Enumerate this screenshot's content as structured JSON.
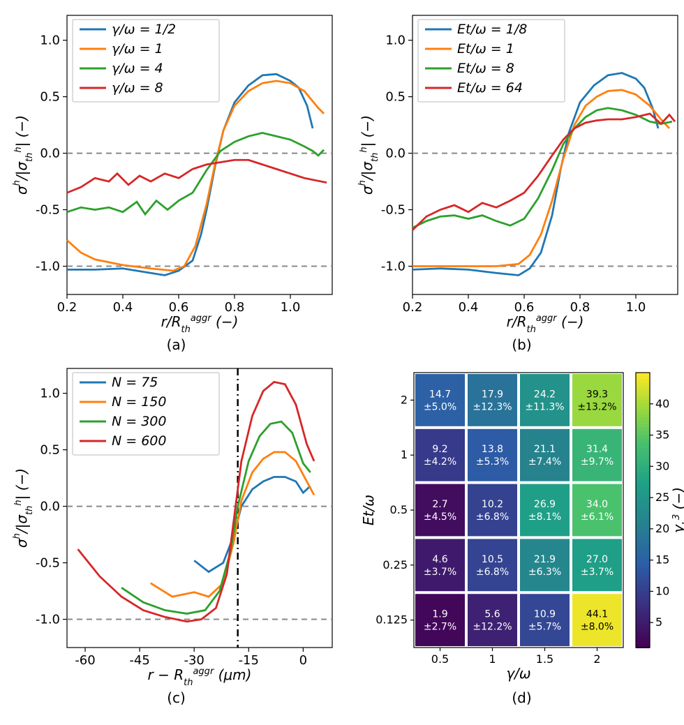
{
  "colors": {
    "c0": "#1f77b4",
    "c1": "#ff7f0e",
    "c2": "#2ca02c",
    "c3": "#d62728",
    "dash": "#888888",
    "black": "#000000"
  },
  "panel_a": {
    "xlabel_html": "r / R_th^aggr (−)",
    "ylabel_html": "σ^h / |σ_th^h| (−)",
    "xlim": [
      0.2,
      1.15
    ],
    "ylim": [
      -1.25,
      1.22
    ],
    "xticks": [
      0.2,
      0.4,
      0.6,
      0.8,
      1.0
    ],
    "yticks": [
      -1.0,
      -0.5,
      0.0,
      0.5,
      1.0
    ],
    "hlines": [
      0.0,
      -1.0
    ],
    "legend": [
      "γ/ω = 1/2",
      "γ/ω =   1",
      "γ/ω =   4",
      "γ/ω =   8"
    ],
    "series": [
      {
        "color": "#1f77b4",
        "pts": [
          [
            0.2,
            -1.03
          ],
          [
            0.3,
            -1.03
          ],
          [
            0.4,
            -1.02
          ],
          [
            0.5,
            -1.06
          ],
          [
            0.55,
            -1.08
          ],
          [
            0.6,
            -1.04
          ],
          [
            0.65,
            -0.95
          ],
          [
            0.68,
            -0.72
          ],
          [
            0.7,
            -0.5
          ],
          [
            0.73,
            -0.12
          ],
          [
            0.76,
            0.2
          ],
          [
            0.8,
            0.45
          ],
          [
            0.85,
            0.6
          ],
          [
            0.9,
            0.69
          ],
          [
            0.95,
            0.7
          ],
          [
            1.0,
            0.64
          ],
          [
            1.03,
            0.58
          ],
          [
            1.06,
            0.42
          ],
          [
            1.08,
            0.22
          ]
        ]
      },
      {
        "color": "#ff7f0e",
        "pts": [
          [
            0.2,
            -0.77
          ],
          [
            0.25,
            -0.88
          ],
          [
            0.3,
            -0.94
          ],
          [
            0.4,
            -0.99
          ],
          [
            0.5,
            -1.02
          ],
          [
            0.58,
            -1.04
          ],
          [
            0.62,
            -1.0
          ],
          [
            0.66,
            -0.82
          ],
          [
            0.7,
            -0.45
          ],
          [
            0.73,
            -0.1
          ],
          [
            0.76,
            0.2
          ],
          [
            0.8,
            0.42
          ],
          [
            0.85,
            0.55
          ],
          [
            0.9,
            0.62
          ],
          [
            0.95,
            0.64
          ],
          [
            1.0,
            0.62
          ],
          [
            1.05,
            0.55
          ],
          [
            1.1,
            0.4
          ],
          [
            1.12,
            0.35
          ]
        ]
      },
      {
        "color": "#2ca02c",
        "pts": [
          [
            0.2,
            -0.52
          ],
          [
            0.25,
            -0.48
          ],
          [
            0.3,
            -0.5
          ],
          [
            0.35,
            -0.48
          ],
          [
            0.4,
            -0.52
          ],
          [
            0.45,
            -0.43
          ],
          [
            0.48,
            -0.54
          ],
          [
            0.52,
            -0.42
          ],
          [
            0.56,
            -0.5
          ],
          [
            0.6,
            -0.42
          ],
          [
            0.65,
            -0.35
          ],
          [
            0.7,
            -0.15
          ],
          [
            0.75,
            0.02
          ],
          [
            0.8,
            0.1
          ],
          [
            0.85,
            0.15
          ],
          [
            0.9,
            0.18
          ],
          [
            0.95,
            0.15
          ],
          [
            1.0,
            0.12
          ],
          [
            1.05,
            0.06
          ],
          [
            1.08,
            0.02
          ],
          [
            1.1,
            -0.02
          ],
          [
            1.12,
            0.03
          ]
        ]
      },
      {
        "color": "#d62728",
        "pts": [
          [
            0.2,
            -0.35
          ],
          [
            0.25,
            -0.3
          ],
          [
            0.3,
            -0.22
          ],
          [
            0.35,
            -0.25
          ],
          [
            0.38,
            -0.18
          ],
          [
            0.42,
            -0.28
          ],
          [
            0.46,
            -0.2
          ],
          [
            0.5,
            -0.25
          ],
          [
            0.55,
            -0.18
          ],
          [
            0.6,
            -0.22
          ],
          [
            0.65,
            -0.14
          ],
          [
            0.7,
            -0.1
          ],
          [
            0.75,
            -0.08
          ],
          [
            0.8,
            -0.06
          ],
          [
            0.85,
            -0.06
          ],
          [
            0.9,
            -0.1
          ],
          [
            0.95,
            -0.14
          ],
          [
            1.0,
            -0.18
          ],
          [
            1.05,
            -0.22
          ],
          [
            1.09,
            -0.24
          ],
          [
            1.13,
            -0.26
          ]
        ]
      }
    ]
  },
  "panel_b": {
    "xlabel_html": "r / R_th^aggr (−)",
    "ylabel_html": "σ^h / |σ_th^h| (−)",
    "xlim": [
      0.2,
      1.15
    ],
    "ylim": [
      -1.25,
      1.22
    ],
    "xticks": [
      0.2,
      0.4,
      0.6,
      0.8,
      1.0
    ],
    "yticks": [
      -1.0,
      -0.5,
      0.0,
      0.5,
      1.0
    ],
    "hlines": [
      0.0,
      -1.0
    ],
    "legend": [
      "Et/ω = 1/8",
      "Et/ω =   1",
      "Et/ω =   8",
      "Et/ω =  64"
    ],
    "series": [
      {
        "color": "#1f77b4",
        "pts": [
          [
            0.2,
            -1.03
          ],
          [
            0.3,
            -1.02
          ],
          [
            0.4,
            -1.03
          ],
          [
            0.5,
            -1.06
          ],
          [
            0.58,
            -1.08
          ],
          [
            0.62,
            -1.02
          ],
          [
            0.66,
            -0.88
          ],
          [
            0.7,
            -0.55
          ],
          [
            0.73,
            -0.15
          ],
          [
            0.76,
            0.18
          ],
          [
            0.8,
            0.45
          ],
          [
            0.85,
            0.6
          ],
          [
            0.9,
            0.69
          ],
          [
            0.95,
            0.71
          ],
          [
            1.0,
            0.66
          ],
          [
            1.03,
            0.58
          ],
          [
            1.06,
            0.4
          ],
          [
            1.08,
            0.22
          ]
        ]
      },
      {
        "color": "#ff7f0e",
        "pts": [
          [
            0.2,
            -1.0
          ],
          [
            0.3,
            -1.0
          ],
          [
            0.4,
            -1.0
          ],
          [
            0.5,
            -1.0
          ],
          [
            0.58,
            -0.98
          ],
          [
            0.62,
            -0.9
          ],
          [
            0.66,
            -0.72
          ],
          [
            0.7,
            -0.42
          ],
          [
            0.74,
            -0.05
          ],
          [
            0.78,
            0.25
          ],
          [
            0.82,
            0.42
          ],
          [
            0.86,
            0.5
          ],
          [
            0.9,
            0.55
          ],
          [
            0.95,
            0.56
          ],
          [
            1.0,
            0.52
          ],
          [
            1.05,
            0.42
          ],
          [
            1.09,
            0.3
          ],
          [
            1.12,
            0.22
          ]
        ]
      },
      {
        "color": "#2ca02c",
        "pts": [
          [
            0.2,
            -0.66
          ],
          [
            0.25,
            -0.6
          ],
          [
            0.3,
            -0.56
          ],
          [
            0.35,
            -0.55
          ],
          [
            0.4,
            -0.58
          ],
          [
            0.45,
            -0.55
          ],
          [
            0.5,
            -0.6
          ],
          [
            0.55,
            -0.64
          ],
          [
            0.6,
            -0.58
          ],
          [
            0.65,
            -0.4
          ],
          [
            0.7,
            -0.15
          ],
          [
            0.74,
            0.08
          ],
          [
            0.78,
            0.22
          ],
          [
            0.82,
            0.32
          ],
          [
            0.86,
            0.38
          ],
          [
            0.9,
            0.4
          ],
          [
            0.95,
            0.38
          ],
          [
            1.0,
            0.34
          ],
          [
            1.05,
            0.28
          ],
          [
            1.09,
            0.26
          ],
          [
            1.13,
            0.28
          ]
        ]
      },
      {
        "color": "#d62728",
        "pts": [
          [
            0.2,
            -0.68
          ],
          [
            0.25,
            -0.56
          ],
          [
            0.3,
            -0.5
          ],
          [
            0.35,
            -0.46
          ],
          [
            0.4,
            -0.52
          ],
          [
            0.45,
            -0.44
          ],
          [
            0.5,
            -0.48
          ],
          [
            0.55,
            -0.42
          ],
          [
            0.6,
            -0.35
          ],
          [
            0.65,
            -0.2
          ],
          [
            0.7,
            -0.02
          ],
          [
            0.74,
            0.12
          ],
          [
            0.78,
            0.22
          ],
          [
            0.82,
            0.27
          ],
          [
            0.86,
            0.29
          ],
          [
            0.9,
            0.3
          ],
          [
            0.95,
            0.3
          ],
          [
            1.0,
            0.32
          ],
          [
            1.05,
            0.35
          ],
          [
            1.09,
            0.26
          ],
          [
            1.12,
            0.34
          ],
          [
            1.14,
            0.28
          ]
        ]
      }
    ]
  },
  "panel_c": {
    "xlabel_html": "r − R_th^aggr (μm)",
    "ylabel_html": "σ^h / |σ_th^h| (−)",
    "xlim": [
      -65,
      8
    ],
    "ylim": [
      -1.25,
      1.22
    ],
    "xticks": [
      -60,
      -45,
      -30,
      -15,
      0
    ],
    "yticks": [
      -1.0,
      -0.5,
      0.0,
      0.5,
      1.0
    ],
    "hlines": [
      0.0,
      -1.0
    ],
    "vline_x": -18,
    "legend": [
      "N =  75",
      "N = 150",
      "N = 300",
      "N = 600"
    ],
    "series": [
      {
        "color": "#1f77b4",
        "pts": [
          [
            -30,
            -0.48
          ],
          [
            -26,
            -0.58
          ],
          [
            -22,
            -0.5
          ],
          [
            -19,
            -0.25
          ],
          [
            -17,
            0.0
          ],
          [
            -14,
            0.15
          ],
          [
            -11,
            0.22
          ],
          [
            -8,
            0.26
          ],
          [
            -5,
            0.26
          ],
          [
            -2,
            0.22
          ],
          [
            0,
            0.12
          ],
          [
            2,
            0.18
          ]
        ]
      },
      {
        "color": "#ff7f0e",
        "pts": [
          [
            -42,
            -0.68
          ],
          [
            -36,
            -0.8
          ],
          [
            -30,
            -0.76
          ],
          [
            -26,
            -0.8
          ],
          [
            -22,
            -0.68
          ],
          [
            -19,
            -0.3
          ],
          [
            -17,
            0.05
          ],
          [
            -14,
            0.3
          ],
          [
            -11,
            0.42
          ],
          [
            -8,
            0.48
          ],
          [
            -5,
            0.48
          ],
          [
            -2,
            0.4
          ],
          [
            1,
            0.22
          ],
          [
            3,
            0.1
          ]
        ]
      },
      {
        "color": "#2ca02c",
        "pts": [
          [
            -50,
            -0.72
          ],
          [
            -44,
            -0.85
          ],
          [
            -38,
            -0.92
          ],
          [
            -32,
            -0.95
          ],
          [
            -27,
            -0.92
          ],
          [
            -23,
            -0.75
          ],
          [
            -20,
            -0.4
          ],
          [
            -18,
            0.0
          ],
          [
            -15,
            0.4
          ],
          [
            -12,
            0.62
          ],
          [
            -9,
            0.73
          ],
          [
            -6,
            0.75
          ],
          [
            -3,
            0.65
          ],
          [
            0,
            0.38
          ],
          [
            2,
            0.3
          ]
        ]
      },
      {
        "color": "#d62728",
        "pts": [
          [
            -62,
            -0.38
          ],
          [
            -56,
            -0.62
          ],
          [
            -50,
            -0.8
          ],
          [
            -44,
            -0.92
          ],
          [
            -38,
            -0.98
          ],
          [
            -32,
            -1.02
          ],
          [
            -28,
            -1.0
          ],
          [
            -24,
            -0.9
          ],
          [
            -21,
            -0.6
          ],
          [
            -19,
            -0.1
          ],
          [
            -17,
            0.4
          ],
          [
            -14,
            0.8
          ],
          [
            -11,
            1.02
          ],
          [
            -8,
            1.1
          ],
          [
            -5,
            1.08
          ],
          [
            -2,
            0.9
          ],
          [
            1,
            0.55
          ],
          [
            3,
            0.4
          ]
        ]
      }
    ]
  },
  "panel_d": {
    "xlabel": "γ/ω",
    "ylabel": "Et/ω",
    "cbar_label_html": "γ_L³ (−)",
    "xticks": [
      "0.5",
      "1",
      "1.5",
      "2"
    ],
    "yticks": [
      "0.125",
      "0.25",
      "0.5",
      "1",
      "2"
    ],
    "cbar_ticks": [
      5,
      10,
      15,
      20,
      25,
      30,
      35,
      40
    ],
    "cbar_range": [
      1,
      45
    ],
    "rows": [
      [
        {
          "v": "14.7",
          "e": "±5.0%"
        },
        {
          "v": "17.9",
          "e": "±12.3%"
        },
        {
          "v": "24.2",
          "e": "±11.3%"
        },
        {
          "v": "39.3",
          "e": "±13.2%"
        }
      ],
      [
        {
          "v": "9.2",
          "e": "±4.2%"
        },
        {
          "v": "13.8",
          "e": "±5.3%"
        },
        {
          "v": "21.1",
          "e": "±7.4%"
        },
        {
          "v": "31.4",
          "e": "±9.7%"
        }
      ],
      [
        {
          "v": "2.7",
          "e": "±4.5%"
        },
        {
          "v": "10.2",
          "e": "±6.8%"
        },
        {
          "v": "26.9",
          "e": "±8.1%"
        },
        {
          "v": "34.0",
          "e": "±6.1%"
        }
      ],
      [
        {
          "v": "4.6",
          "e": "±3.7%"
        },
        {
          "v": "10.5",
          "e": "±6.8%"
        },
        {
          "v": "21.9",
          "e": "±6.3%"
        },
        {
          "v": "27.0",
          "e": "±3.7%"
        }
      ],
      [
        {
          "v": "1.9",
          "e": "±2.7%"
        },
        {
          "v": "5.6",
          "e": "±12.2%"
        },
        {
          "v": "10.9",
          "e": "±5.7%"
        },
        {
          "v": "44.1",
          "e": "±8.0%"
        }
      ]
    ],
    "row_values": [
      [
        14.7,
        17.9,
        24.2,
        39.3
      ],
      [
        9.2,
        13.8,
        21.1,
        31.4
      ],
      [
        2.7,
        10.2,
        26.9,
        34.0
      ],
      [
        4.6,
        10.5,
        21.9,
        27.0
      ],
      [
        1.9,
        5.6,
        10.9,
        44.1
      ]
    ]
  },
  "labels": {
    "a": "(a)",
    "b": "(b)",
    "c": "(c)",
    "d": "(d)"
  }
}
